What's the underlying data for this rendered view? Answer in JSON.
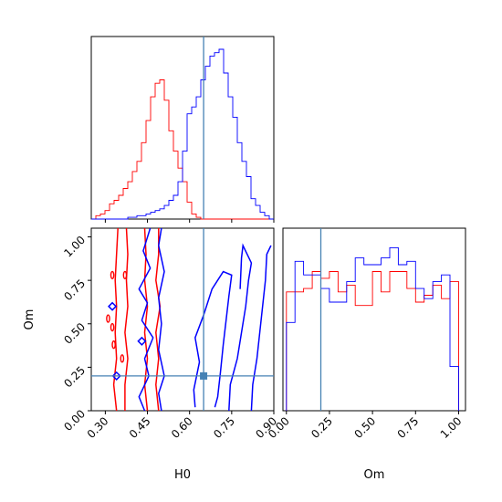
{
  "chart_data": {
    "type": "corner",
    "parameters": [
      "H0",
      "Om"
    ],
    "truth": {
      "H0": 0.65,
      "Om": 0.2
    },
    "truth_color": "#4682b4",
    "series_colors": {
      "red": "#ff0000",
      "blue": "#0000ff"
    },
    "panels": {
      "hist_H0": {
        "xlim": [
          0.25,
          0.9
        ],
        "bin_edges_start": 0.25,
        "bin_width": 0.01625,
        "red": [
          0,
          0.02,
          0.03,
          0.05,
          0.09,
          0.11,
          0.14,
          0.18,
          0.22,
          0.28,
          0.34,
          0.45,
          0.58,
          0.72,
          0.8,
          0.82,
          0.7,
          0.52,
          0.4,
          0.3,
          0.22,
          0.1,
          0.03,
          0.01,
          0,
          0,
          0,
          0,
          0,
          0,
          0,
          0,
          0,
          0,
          0,
          0,
          0,
          0,
          0,
          0
        ],
        "blue": [
          0,
          0,
          0,
          0,
          0,
          0,
          0,
          0,
          0.01,
          0.01,
          0.02,
          0.02,
          0.03,
          0.04,
          0.05,
          0.06,
          0.08,
          0.11,
          0.14,
          0.22,
          0.4,
          0.62,
          0.66,
          0.72,
          0.82,
          0.9,
          0.96,
          0.98,
          1.0,
          0.86,
          0.72,
          0.6,
          0.45,
          0.34,
          0.25,
          0.12,
          0.08,
          0.04,
          0.02,
          0.0
        ]
      },
      "hist_Om": {
        "xlim": [
          -0.02,
          1.04
        ],
        "xticks": [
          "0.00",
          "0.25",
          "0.50",
          "0.75",
          "1.00"
        ],
        "xtick_values": [
          0,
          0.25,
          0.5,
          0.75,
          1.0
        ],
        "bin_edges_start": 0.0,
        "bin_width": 0.05,
        "red": [
          0.7,
          0.7,
          0.72,
          0.82,
          0.78,
          0.82,
          0.7,
          0.74,
          0.62,
          0.62,
          0.82,
          0.7,
          0.82,
          0.82,
          0.72,
          0.64,
          0.68,
          0.74,
          0.66,
          0.76
        ],
        "blue": [
          0.52,
          0.88,
          0.8,
          0.8,
          0.72,
          0.64,
          0.64,
          0.76,
          0.9,
          0.86,
          0.86,
          0.9,
          0.96,
          0.86,
          0.88,
          0.72,
          0.66,
          0.76,
          0.8,
          0.26
        ]
      },
      "contour": {
        "xlabel": "H0",
        "ylabel": "Om",
        "xlim": [
          0.25,
          0.9
        ],
        "ylim": [
          0.0,
          1.05
        ],
        "xticks": [
          "0.30",
          "0.45",
          "0.60",
          "0.75",
          "0.90"
        ],
        "xtick_values": [
          0.3,
          0.45,
          0.6,
          0.75,
          0.9
        ],
        "yticks": [
          "0.00",
          "0.25",
          "0.50",
          "0.75",
          "1.00"
        ],
        "ytick_values": [
          0,
          0.25,
          0.5,
          0.75,
          1.0
        ],
        "red_contours": [
          [
            [
              0.34,
              0.0
            ],
            [
              0.33,
              0.15
            ],
            [
              0.34,
              0.3
            ],
            [
              0.335,
              0.45
            ],
            [
              0.34,
              0.6
            ],
            [
              0.335,
              0.75
            ],
            [
              0.34,
              0.9
            ],
            [
              0.345,
              1.05
            ]
          ],
          [
            [
              0.37,
              0.0
            ],
            [
              0.37,
              0.15
            ],
            [
              0.38,
              0.3
            ],
            [
              0.37,
              0.45
            ],
            [
              0.38,
              0.6
            ],
            [
              0.375,
              0.75
            ],
            [
              0.38,
              0.9
            ],
            [
              0.375,
              1.05
            ]
          ],
          [
            [
              0.45,
              0.0
            ],
            [
              0.44,
              0.15
            ],
            [
              0.45,
              0.3
            ],
            [
              0.44,
              0.45
            ],
            [
              0.45,
              0.6
            ],
            [
              0.44,
              0.75
            ],
            [
              0.445,
              0.9
            ],
            [
              0.44,
              1.05
            ]
          ],
          [
            [
              0.49,
              0.0
            ],
            [
              0.48,
              0.15
            ],
            [
              0.49,
              0.3
            ],
            [
              0.48,
              0.45
            ],
            [
              0.495,
              0.6
            ],
            [
              0.48,
              0.75
            ],
            [
              0.49,
              0.9
            ],
            [
              0.49,
              1.05
            ]
          ]
        ],
        "blue_contours": [
          [
            [
              0.44,
              0.0
            ],
            [
              0.42,
              0.08
            ],
            [
              0.455,
              0.2
            ],
            [
              0.44,
              0.3
            ],
            [
              0.47,
              0.42
            ],
            [
              0.43,
              0.52
            ],
            [
              0.45,
              0.62
            ],
            [
              0.42,
              0.7
            ],
            [
              0.46,
              0.82
            ],
            [
              0.435,
              0.92
            ],
            [
              0.46,
              1.05
            ]
          ],
          [
            [
              0.5,
              0.0
            ],
            [
              0.49,
              0.1
            ],
            [
              0.51,
              0.2
            ],
            [
              0.49,
              0.35
            ],
            [
              0.5,
              0.5
            ],
            [
              0.49,
              0.65
            ],
            [
              0.51,
              0.8
            ],
            [
              0.49,
              0.95
            ],
            [
              0.5,
              1.05
            ]
          ],
          [
            [
              0.62,
              0.02
            ],
            [
              0.615,
              0.12
            ],
            [
              0.635,
              0.28
            ],
            [
              0.62,
              0.42
            ],
            [
              0.65,
              0.55
            ],
            [
              0.68,
              0.7
            ],
            [
              0.72,
              0.8
            ],
            [
              0.75,
              0.78
            ],
            [
              0.74,
              0.66
            ],
            [
              0.73,
              0.52
            ],
            [
              0.72,
              0.38
            ],
            [
              0.71,
              0.22
            ],
            [
              0.7,
              0.08
            ],
            [
              0.69,
              0.02
            ]
          ],
          [
            [
              0.74,
              0.0
            ],
            [
              0.745,
              0.15
            ],
            [
              0.77,
              0.3
            ],
            [
              0.785,
              0.45
            ],
            [
              0.8,
              0.6
            ],
            [
              0.81,
              0.75
            ],
            [
              0.82,
              0.85
            ],
            [
              0.79,
              0.95
            ],
            [
              0.785,
              0.88
            ],
            [
              0.78,
              0.7
            ]
          ],
          [
            [
              0.82,
              0.0
            ],
            [
              0.825,
              0.15
            ],
            [
              0.84,
              0.3
            ],
            [
              0.85,
              0.45
            ],
            [
              0.86,
              0.6
            ],
            [
              0.87,
              0.75
            ],
            [
              0.875,
              0.9
            ],
            [
              0.89,
              0.95
            ]
          ]
        ],
        "blue_islands": [
          [
            0.325,
            0.6
          ],
          [
            0.34,
            0.2
          ],
          [
            0.43,
            0.4
          ]
        ],
        "red_islands": [
          [
            0.325,
            0.78
          ],
          [
            0.31,
            0.53
          ],
          [
            0.325,
            0.48
          ],
          [
            0.33,
            0.38
          ],
          [
            0.37,
            0.78
          ],
          [
            0.36,
            0.3
          ]
        ]
      }
    }
  }
}
